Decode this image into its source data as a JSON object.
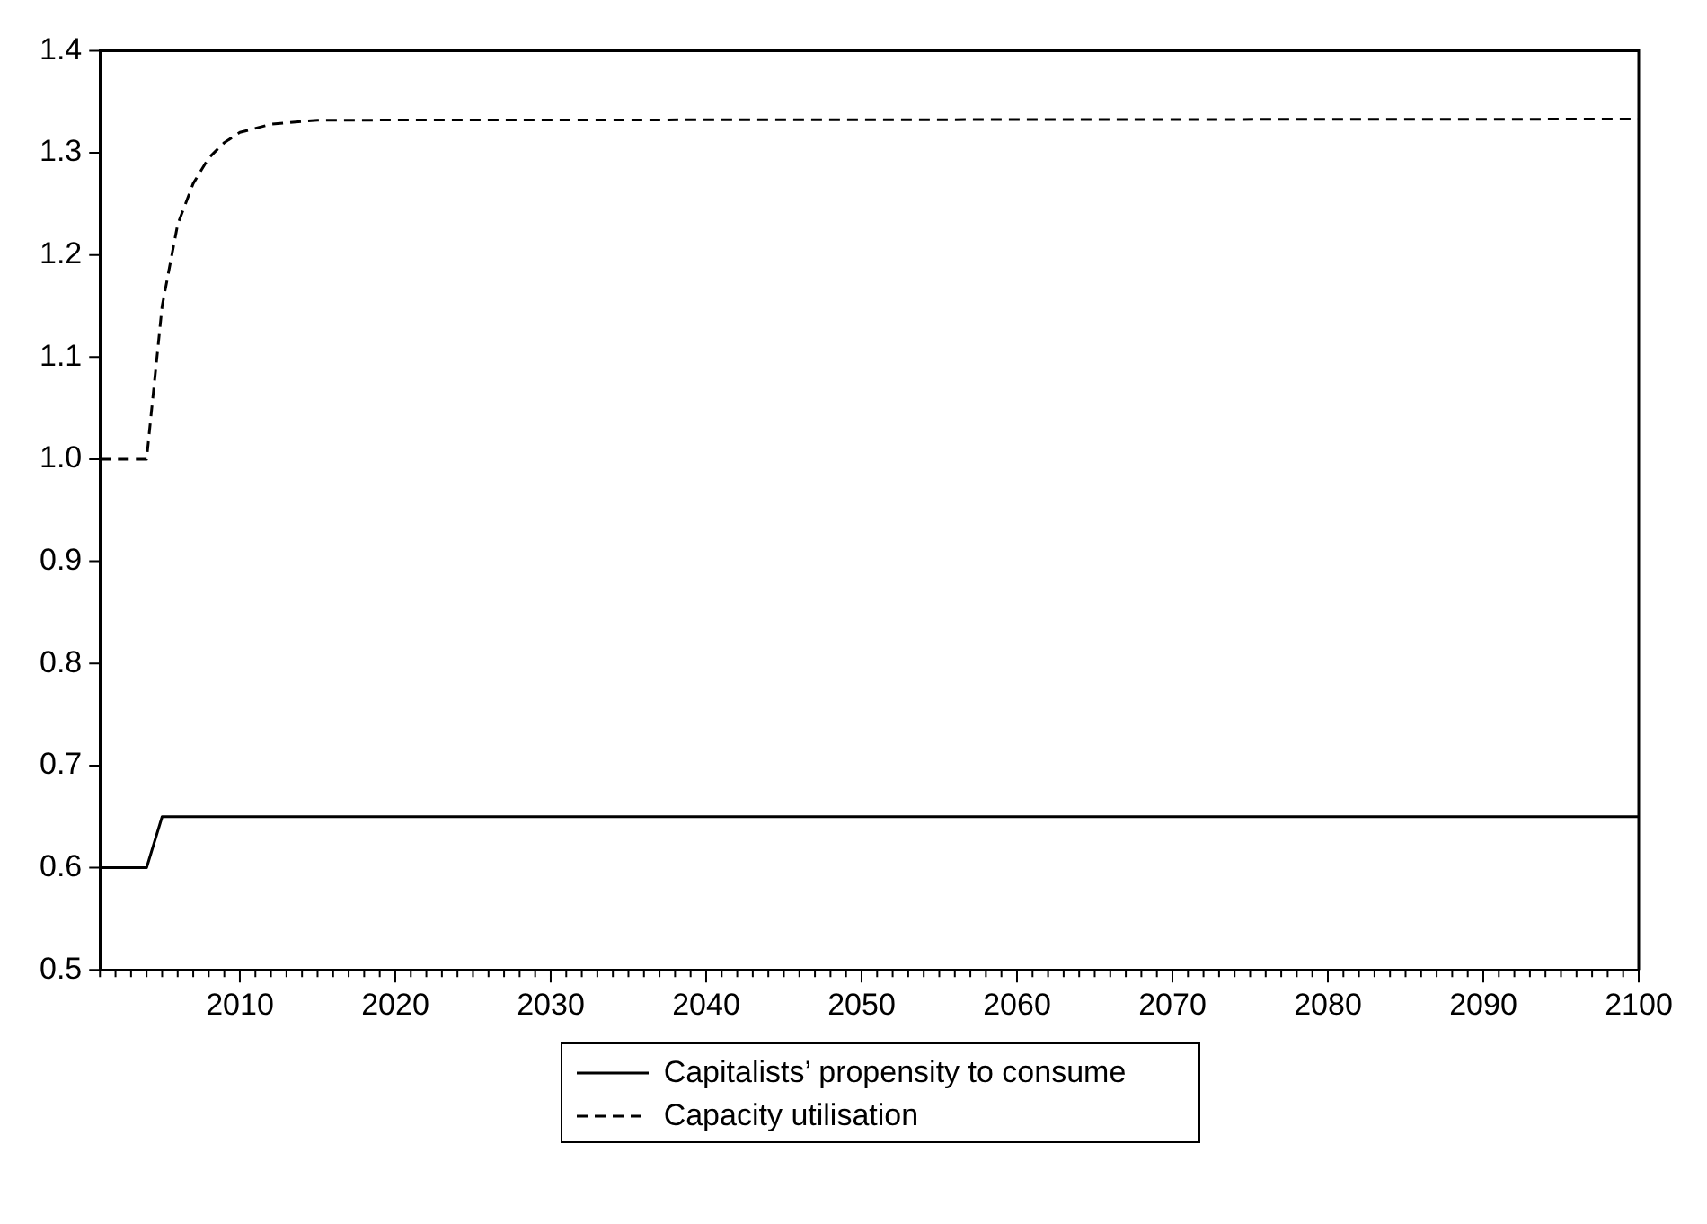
{
  "chart_data": {
    "type": "line",
    "xlim": [
      2001,
      2100
    ],
    "ylim": [
      0.5,
      1.4
    ],
    "xticks": [
      {
        "value": 2001,
        "label": null
      },
      {
        "value": 2002,
        "label": null
      },
      {
        "value": 2003,
        "label": null
      },
      {
        "value": 2004,
        "label": null
      },
      {
        "value": 2005,
        "label": null
      },
      {
        "value": 2006,
        "label": null
      },
      {
        "value": 2007,
        "label": null
      },
      {
        "value": 2008,
        "label": null
      },
      {
        "value": 2009,
        "label": null
      },
      2010,
      {
        "value": 2011,
        "label": null
      },
      {
        "value": 2012,
        "label": null
      },
      {
        "value": 2013,
        "label": null
      },
      {
        "value": 2014,
        "label": null
      },
      {
        "value": 2015,
        "label": null
      },
      {
        "value": 2016,
        "label": null
      },
      {
        "value": 2017,
        "label": null
      },
      {
        "value": 2018,
        "label": null
      },
      {
        "value": 2019,
        "label": null
      },
      2020,
      {
        "value": 2021,
        "label": null
      },
      {
        "value": 2022,
        "label": null
      },
      {
        "value": 2023,
        "label": null
      },
      {
        "value": 2024,
        "label": null
      },
      {
        "value": 2025,
        "label": null
      },
      {
        "value": 2026,
        "label": null
      },
      {
        "value": 2027,
        "label": null
      },
      {
        "value": 2028,
        "label": null
      },
      {
        "value": 2029,
        "label": null
      },
      2030,
      {
        "value": 2031,
        "label": null
      },
      {
        "value": 2032,
        "label": null
      },
      {
        "value": 2033,
        "label": null
      },
      {
        "value": 2034,
        "label": null
      },
      {
        "value": 2035,
        "label": null
      },
      {
        "value": 2036,
        "label": null
      },
      {
        "value": 2037,
        "label": null
      },
      {
        "value": 2038,
        "label": null
      },
      {
        "value": 2039,
        "label": null
      },
      2040,
      {
        "value": 2041,
        "label": null
      },
      {
        "value": 2042,
        "label": null
      },
      {
        "value": 2043,
        "label": null
      },
      {
        "value": 2044,
        "label": null
      },
      {
        "value": 2045,
        "label": null
      },
      {
        "value": 2046,
        "label": null
      },
      {
        "value": 2047,
        "label": null
      },
      {
        "value": 2048,
        "label": null
      },
      {
        "value": 2049,
        "label": null
      },
      2050,
      {
        "value": 2051,
        "label": null
      },
      {
        "value": 2052,
        "label": null
      },
      {
        "value": 2053,
        "label": null
      },
      {
        "value": 2054,
        "label": null
      },
      {
        "value": 2055,
        "label": null
      },
      {
        "value": 2056,
        "label": null
      },
      {
        "value": 2057,
        "label": null
      },
      {
        "value": 2058,
        "label": null
      },
      {
        "value": 2059,
        "label": null
      },
      2060,
      {
        "value": 2061,
        "label": null
      },
      {
        "value": 2062,
        "label": null
      },
      {
        "value": 2063,
        "label": null
      },
      {
        "value": 2064,
        "label": null
      },
      {
        "value": 2065,
        "label": null
      },
      {
        "value": 2066,
        "label": null
      },
      {
        "value": 2067,
        "label": null
      },
      {
        "value": 2068,
        "label": null
      },
      {
        "value": 2069,
        "label": null
      },
      2070,
      {
        "value": 2071,
        "label": null
      },
      {
        "value": 2072,
        "label": null
      },
      {
        "value": 2073,
        "label": null
      },
      {
        "value": 2074,
        "label": null
      },
      {
        "value": 2075,
        "label": null
      },
      {
        "value": 2076,
        "label": null
      },
      {
        "value": 2077,
        "label": null
      },
      {
        "value": 2078,
        "label": null
      },
      {
        "value": 2079,
        "label": null
      },
      2080,
      {
        "value": 2081,
        "label": null
      },
      {
        "value": 2082,
        "label": null
      },
      {
        "value": 2083,
        "label": null
      },
      {
        "value": 2084,
        "label": null
      },
      {
        "value": 2085,
        "label": null
      },
      {
        "value": 2086,
        "label": null
      },
      {
        "value": 2087,
        "label": null
      },
      {
        "value": 2088,
        "label": null
      },
      {
        "value": 2089,
        "label": null
      },
      2090,
      {
        "value": 2091,
        "label": null
      },
      {
        "value": 2092,
        "label": null
      },
      {
        "value": 2093,
        "label": null
      },
      {
        "value": 2094,
        "label": null
      },
      {
        "value": 2095,
        "label": null
      },
      {
        "value": 2096,
        "label": null
      },
      {
        "value": 2097,
        "label": null
      },
      {
        "value": 2098,
        "label": null
      },
      {
        "value": 2099,
        "label": null
      },
      2100
    ],
    "yticks": [
      0.5,
      0.6,
      0.7,
      0.8,
      0.9,
      {
        "value": 1,
        "label": "1.0"
      },
      1.1,
      1.2,
      1.3,
      1.4
    ],
    "grid": false,
    "legend": "bottom",
    "series": [
      {
        "name": "Capitalists’ propensity to consume",
        "color": "#000000",
        "line_style": "solid",
        "x": [
          2001,
          2004,
          2005,
          2100
        ],
        "values": [
          0.6,
          0.6,
          0.65,
          0.65
        ]
      },
      {
        "name": "Capacity utilisation",
        "color": "#000000",
        "line_style": "dashed",
        "x": [
          2001,
          2004,
          2005,
          2006,
          2007,
          2008,
          2009,
          2010,
          2012,
          2015,
          2100
        ],
        "values": [
          1.0,
          1.0,
          1.15,
          1.23,
          1.27,
          1.295,
          1.31,
          1.32,
          1.328,
          1.332,
          1.333
        ]
      }
    ]
  }
}
